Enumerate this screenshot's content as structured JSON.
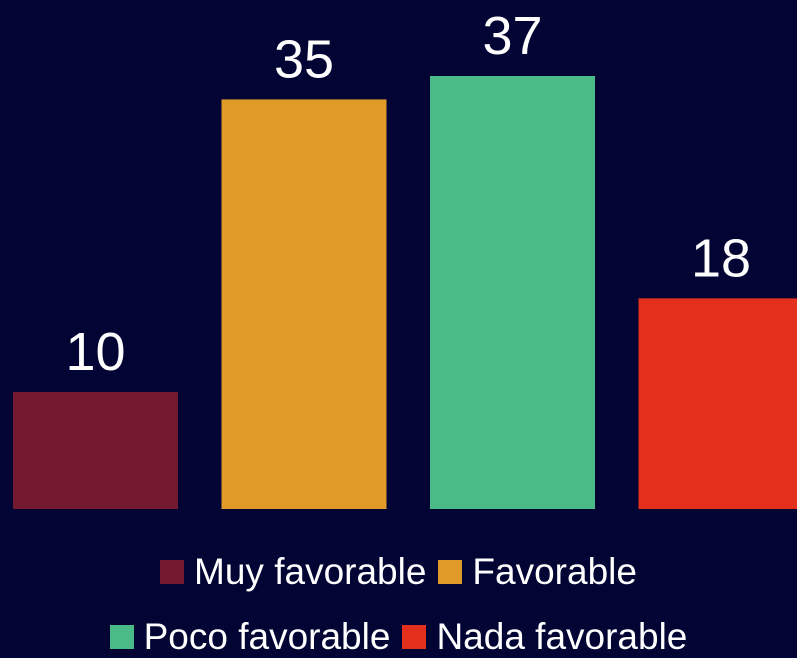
{
  "chart_data": {
    "type": "bar",
    "categories": [
      "Muy favorable",
      "Favorable",
      "Poco favorable",
      "Nada favorable"
    ],
    "values": [
      10,
      35,
      37,
      18
    ],
    "colors": [
      "#731a31",
      "#e09a28",
      "#48bb87",
      "#e3301c"
    ],
    "data_labels": [
      "10",
      "35",
      "37",
      "18"
    ],
    "ylim": [
      0,
      37
    ],
    "grid": false,
    "legend_position": "bottom",
    "background": "#020433"
  }
}
